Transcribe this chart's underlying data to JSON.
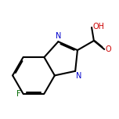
{
  "bg_color": "#ffffff",
  "bond_color": "#000000",
  "bond_width": 1.5,
  "dbo": 0.055,
  "atom_colors": {
    "N": "#0000cc",
    "O": "#cc0000",
    "F": "#006600",
    "C": "#000000"
  },
  "fs": 7.0
}
